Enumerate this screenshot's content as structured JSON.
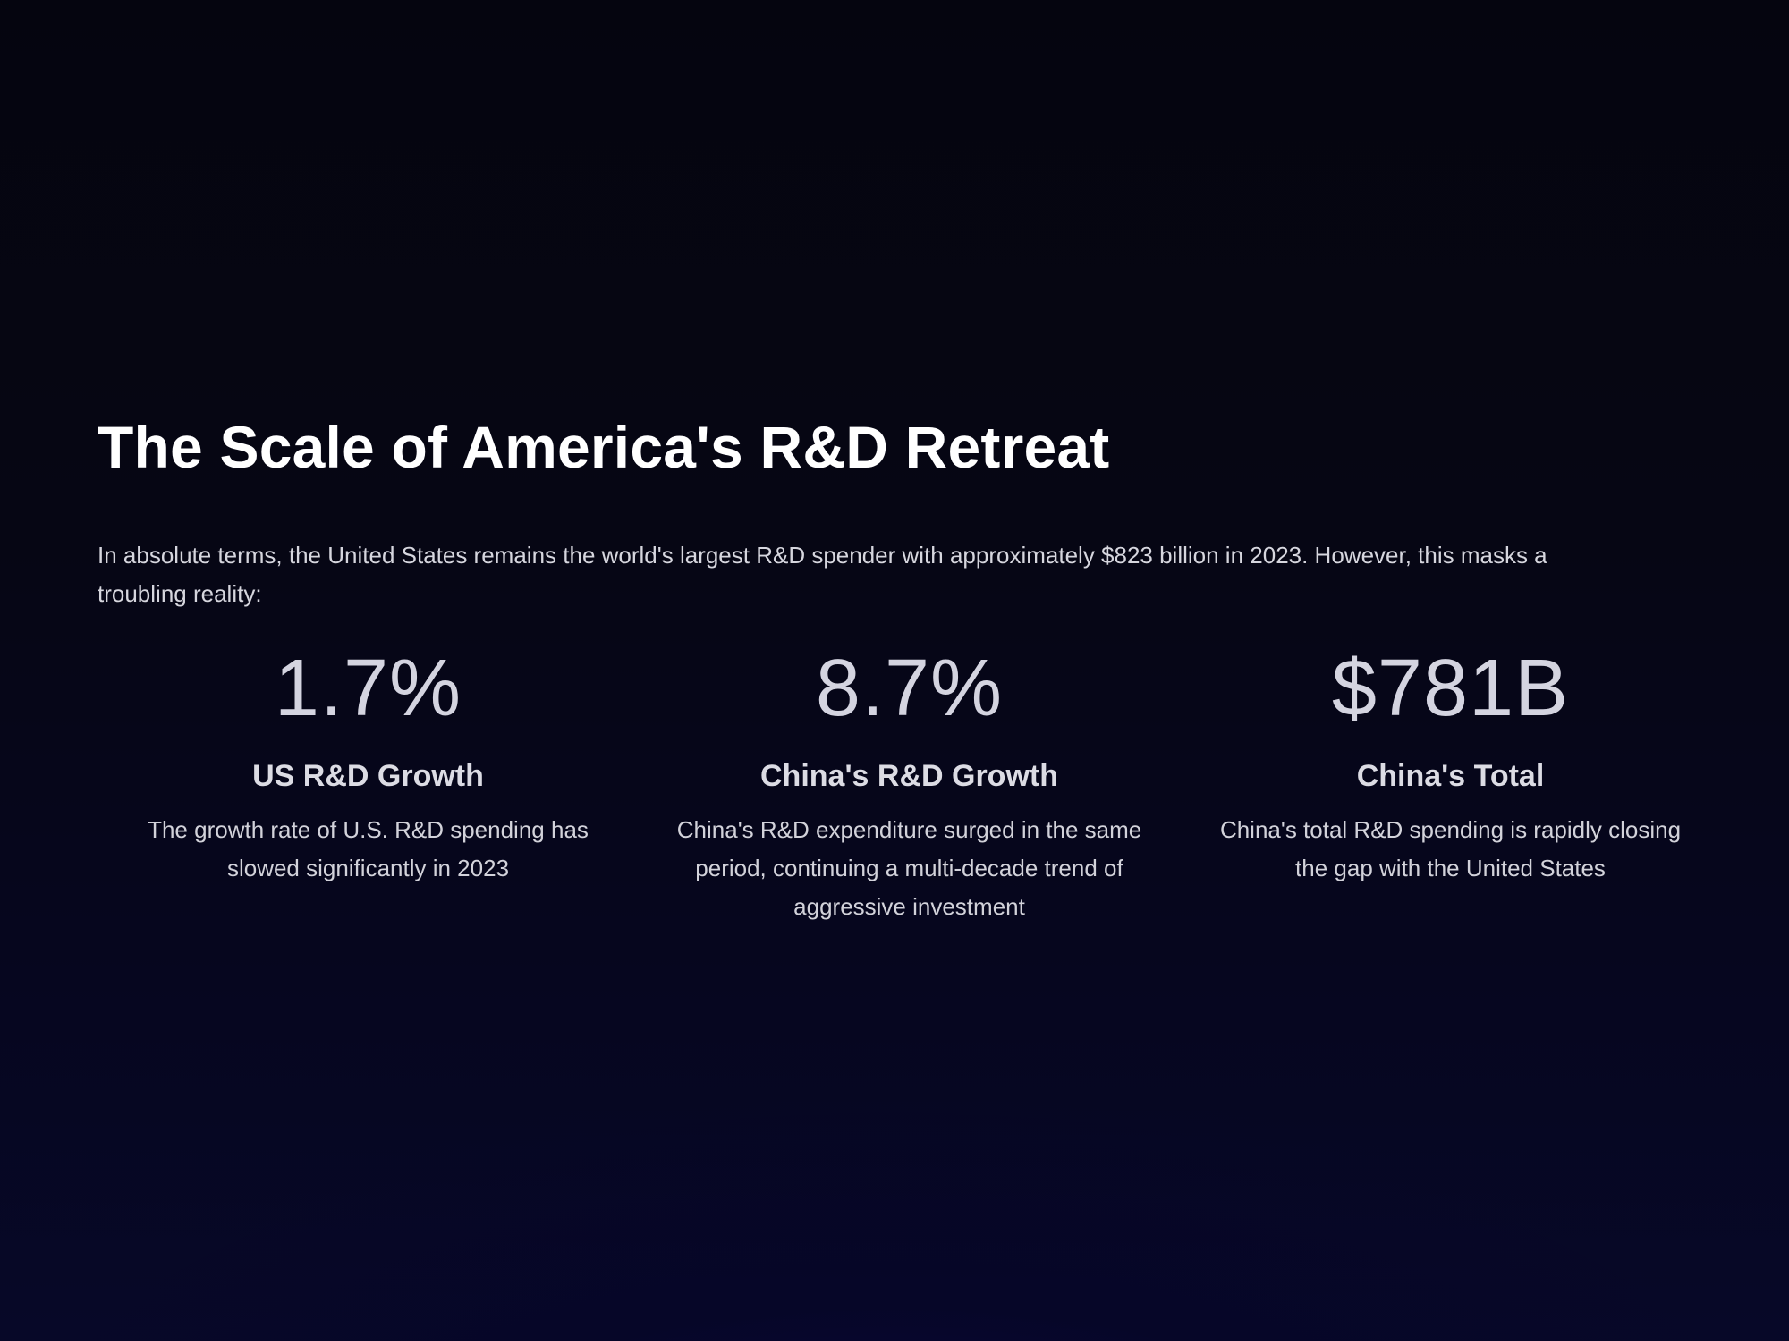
{
  "slide": {
    "title": "The Scale of America's R&D Retreat",
    "intro": "In absolute terms, the United States remains the world's largest R&D spender with approximately $823 billion in 2023. However, this masks a troubling reality:"
  },
  "stats": [
    {
      "value": "1.7%",
      "label": "US R&D Growth",
      "description": "The growth rate of U.S. R&D spending has slowed significantly in 2023"
    },
    {
      "value": "8.7%",
      "label": "China's R&D Growth",
      "description": "China's R&D expenditure surged in the same period, continuing a multi-decade trend of aggressive investment"
    },
    {
      "value": "$781B",
      "label": "China's Total",
      "description": "China's total R&D spending is rapidly closing the gap with the United States"
    }
  ]
}
